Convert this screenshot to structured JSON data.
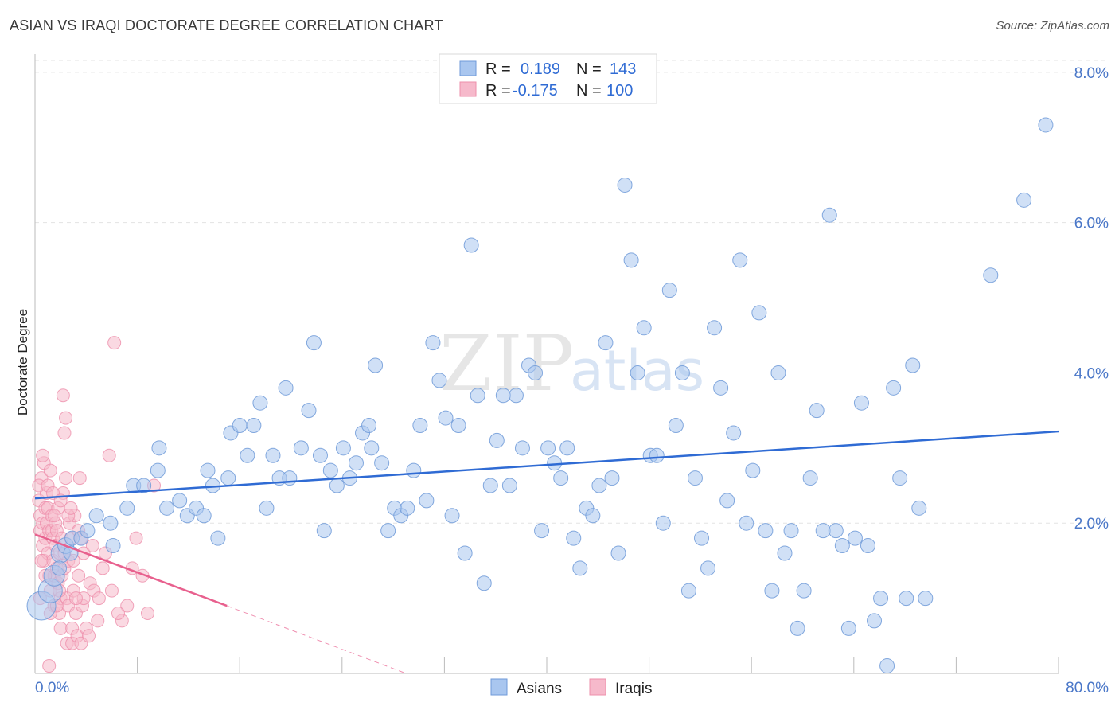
{
  "header": {
    "title": "ASIAN VS IRAQI DOCTORATE DEGREE CORRELATION CHART",
    "source": "Source: ZipAtlas.com"
  },
  "watermark": {
    "zip": "ZIP",
    "atlas": "atlas"
  },
  "legend": {
    "rows": [
      {
        "r_label": "R =",
        "r_value": "0.189",
        "n_label": "N =",
        "n_value": "143",
        "color": "#a9c6ef"
      },
      {
        "r_label": "R =",
        "r_value": "-0.175",
        "n_label": "N =",
        "n_value": "100",
        "color": "#f6b9cb"
      }
    ]
  },
  "bottom_legend": {
    "asians": "Asians",
    "iraqis": "Iraqis"
  },
  "colors": {
    "asian_fill": "#a9c6ef",
    "asian_stroke": "#6f9ad8",
    "asian_line": "#2f6bd4",
    "iraqi_fill": "#f6b9cb",
    "iraqi_stroke": "#ee8fab",
    "iraqi_line": "#e8608e",
    "axis_text": "#4a77c8",
    "grid": "#e3e3e3"
  },
  "chart_data": {
    "type": "scatter",
    "title": "ASIAN VS IRAQI DOCTORATE DEGREE CORRELATION CHART",
    "xlabel": "",
    "ylabel": "Doctorate Degree",
    "xlim": [
      0,
      80
    ],
    "ylim": [
      0,
      8.2
    ],
    "x_tick_labels": [
      "0.0%",
      "80.0%"
    ],
    "y_ticks": [
      2,
      4,
      6,
      8
    ],
    "y_tick_labels": [
      "2.0%",
      "4.0%",
      "6.0%",
      "8.0%"
    ],
    "grid": true,
    "legend_position": "top-center",
    "series": [
      {
        "name": "Asians",
        "r": 0.189,
        "n": 143,
        "trend": {
          "x": [
            0,
            80
          ],
          "y": [
            2.33,
            3.22
          ]
        },
        "points": [
          [
            0.5,
            0.9,
            18
          ],
          [
            1.2,
            1.1,
            15
          ],
          [
            1.5,
            1.3,
            13
          ],
          [
            2.0,
            1.6,
            12
          ],
          [
            2.4,
            1.7,
            10
          ],
          [
            2.9,
            1.8,
            9
          ],
          [
            3.6,
            1.8,
            9
          ],
          [
            4.1,
            1.9,
            9
          ],
          [
            5.9,
            2.0,
            9
          ],
          [
            7.2,
            2.2,
            9
          ],
          [
            7.7,
            2.5,
            9
          ],
          [
            9.7,
            3.0,
            9
          ],
          [
            10.3,
            2.2,
            9
          ],
          [
            8.5,
            2.5,
            9
          ],
          [
            9.6,
            2.7,
            9
          ],
          [
            4.8,
            2.1,
            9
          ],
          [
            6.1,
            1.7,
            9
          ],
          [
            2.8,
            1.6,
            9
          ],
          [
            1.9,
            1.4,
            9
          ],
          [
            11.3,
            2.3,
            9
          ],
          [
            11.9,
            2.1,
            9
          ],
          [
            12.6,
            2.2,
            9
          ],
          [
            13.2,
            2.1,
            9
          ],
          [
            13.5,
            2.7,
            9
          ],
          [
            13.9,
            2.5,
            9
          ],
          [
            14.3,
            1.8,
            9
          ],
          [
            15.1,
            2.6,
            9
          ],
          [
            15.3,
            3.2,
            9
          ],
          [
            16.0,
            3.3,
            9
          ],
          [
            16.6,
            2.9,
            9
          ],
          [
            17.1,
            3.3,
            9
          ],
          [
            17.6,
            3.6,
            9
          ],
          [
            18.1,
            2.2,
            9
          ],
          [
            18.6,
            2.9,
            9
          ],
          [
            19.1,
            2.6,
            9
          ],
          [
            19.6,
            3.8,
            9
          ],
          [
            19.9,
            2.6,
            9
          ],
          [
            20.8,
            3.0,
            9
          ],
          [
            21.4,
            3.5,
            9
          ],
          [
            21.8,
            4.4,
            9
          ],
          [
            22.3,
            2.9,
            9
          ],
          [
            22.6,
            1.9,
            9
          ],
          [
            23.1,
            2.7,
            9
          ],
          [
            23.6,
            2.5,
            9
          ],
          [
            24.1,
            3.0,
            9
          ],
          [
            24.6,
            2.6,
            9
          ],
          [
            25.1,
            2.8,
            9
          ],
          [
            25.6,
            3.2,
            9
          ],
          [
            26.1,
            3.3,
            9
          ],
          [
            26.3,
            3.0,
            9
          ],
          [
            26.6,
            4.1,
            9
          ],
          [
            27.1,
            2.8,
            9
          ],
          [
            27.6,
            1.9,
            9
          ],
          [
            28.1,
            2.2,
            9
          ],
          [
            28.6,
            2.1,
            9
          ],
          [
            29.1,
            2.2,
            9
          ],
          [
            29.6,
            2.7,
            9
          ],
          [
            30.1,
            3.3,
            9
          ],
          [
            30.6,
            2.3,
            9
          ],
          [
            31.1,
            4.4,
            9
          ],
          [
            31.6,
            3.9,
            9
          ],
          [
            32.1,
            3.4,
            9
          ],
          [
            32.6,
            2.1,
            9
          ],
          [
            33.1,
            3.3,
            9
          ],
          [
            33.6,
            1.6,
            9
          ],
          [
            34.1,
            5.7,
            9
          ],
          [
            34.6,
            3.7,
            9
          ],
          [
            35.1,
            1.2,
            9
          ],
          [
            35.6,
            2.5,
            9
          ],
          [
            36.1,
            3.1,
            9
          ],
          [
            36.6,
            3.7,
            9
          ],
          [
            37.1,
            2.5,
            9
          ],
          [
            37.6,
            3.7,
            9
          ],
          [
            38.1,
            3.0,
            9
          ],
          [
            38.6,
            4.1,
            9
          ],
          [
            39.1,
            4.0,
            9
          ],
          [
            39.6,
            1.9,
            9
          ],
          [
            40.1,
            3.0,
            9
          ],
          [
            40.6,
            2.8,
            9
          ],
          [
            41.1,
            2.6,
            9
          ],
          [
            41.6,
            3.0,
            9
          ],
          [
            42.1,
            1.8,
            9
          ],
          [
            42.6,
            1.4,
            9
          ],
          [
            43.1,
            2.2,
            9
          ],
          [
            43.6,
            2.1,
            9
          ],
          [
            44.1,
            2.5,
            9
          ],
          [
            44.6,
            4.4,
            9
          ],
          [
            45.1,
            2.6,
            9
          ],
          [
            45.6,
            1.6,
            9
          ],
          [
            46.1,
            6.5,
            9
          ],
          [
            46.6,
            5.5,
            9
          ],
          [
            47.1,
            4.0,
            9
          ],
          [
            47.6,
            4.6,
            9
          ],
          [
            48.1,
            2.9,
            9
          ],
          [
            48.6,
            2.9,
            9
          ],
          [
            49.1,
            2.0,
            9
          ],
          [
            49.6,
            5.1,
            9
          ],
          [
            50.1,
            3.3,
            9
          ],
          [
            50.6,
            4.0,
            9
          ],
          [
            51.1,
            1.1,
            9
          ],
          [
            51.6,
            2.6,
            9
          ],
          [
            52.1,
            1.8,
            9
          ],
          [
            52.6,
            1.4,
            9
          ],
          [
            53.1,
            4.6,
            9
          ],
          [
            53.6,
            3.8,
            9
          ],
          [
            54.1,
            2.3,
            9
          ],
          [
            54.6,
            3.2,
            9
          ],
          [
            55.1,
            5.5,
            9
          ],
          [
            55.6,
            2.0,
            9
          ],
          [
            56.1,
            2.7,
            9
          ],
          [
            56.6,
            4.8,
            9
          ],
          [
            57.1,
            1.9,
            9
          ],
          [
            57.6,
            1.1,
            9
          ],
          [
            58.1,
            4.0,
            9
          ],
          [
            58.6,
            1.6,
            9
          ],
          [
            59.1,
            1.9,
            9
          ],
          [
            59.6,
            0.6,
            9
          ],
          [
            60.1,
            1.1,
            9
          ],
          [
            60.6,
            2.6,
            9
          ],
          [
            61.1,
            3.5,
            9
          ],
          [
            61.6,
            1.9,
            9
          ],
          [
            62.1,
            6.1,
            9
          ],
          [
            62.6,
            1.9,
            9
          ],
          [
            63.1,
            1.7,
            9
          ],
          [
            63.6,
            0.6,
            9
          ],
          [
            64.1,
            1.8,
            9
          ],
          [
            64.6,
            3.6,
            9
          ],
          [
            65.1,
            1.7,
            9
          ],
          [
            65.6,
            0.7,
            9
          ],
          [
            66.1,
            1.0,
            9
          ],
          [
            66.6,
            0.1,
            9
          ],
          [
            67.1,
            3.8,
            9
          ],
          [
            67.6,
            2.6,
            9
          ],
          [
            68.1,
            1.0,
            9
          ],
          [
            68.6,
            4.1,
            9
          ],
          [
            69.1,
            2.2,
            9
          ],
          [
            69.6,
            1.0,
            9
          ],
          [
            74.7,
            5.3,
            9
          ],
          [
            77.3,
            6.3,
            9
          ],
          [
            79.0,
            7.3,
            9
          ]
        ]
      },
      {
        "name": "Iraqis",
        "r": -0.175,
        "n": 100,
        "trend": {
          "x": [
            0,
            15
          ],
          "y": [
            1.85,
            0.9
          ]
        },
        "trend_dashed": {
          "x": [
            15,
            29
          ],
          "y": [
            0.9,
            0.0
          ]
        },
        "points": [
          [
            0.3,
            2.3
          ],
          [
            0.4,
            2.1
          ],
          [
            0.4,
            1.9
          ],
          [
            0.5,
            2.6
          ],
          [
            0.6,
            1.7
          ],
          [
            0.6,
            2.0
          ],
          [
            0.7,
            2.8
          ],
          [
            0.7,
            1.5
          ],
          [
            0.8,
            2.2
          ],
          [
            0.8,
            1.8
          ],
          [
            0.9,
            2.4
          ],
          [
            0.9,
            2.0
          ],
          [
            1.0,
            1.6
          ],
          [
            1.0,
            2.2
          ],
          [
            1.1,
            1.9
          ],
          [
            1.1,
            1.3
          ],
          [
            1.2,
            2.7
          ],
          [
            1.2,
            1.1
          ],
          [
            1.3,
            1.9
          ],
          [
            1.3,
            2.1
          ],
          [
            1.4,
            1.5
          ],
          [
            1.4,
            1.8
          ],
          [
            1.5,
            0.9
          ],
          [
            1.5,
            1.3
          ],
          [
            1.6,
            2.0
          ],
          [
            1.6,
            1.7
          ],
          [
            1.7,
            1.4
          ],
          [
            1.7,
            1.9
          ],
          [
            1.8,
            2.2
          ],
          [
            1.8,
            1.2
          ],
          [
            1.9,
            0.8
          ],
          [
            1.9,
            1.6
          ],
          [
            2.0,
            0.6
          ],
          [
            2.0,
            1.0
          ],
          [
            2.1,
            1.3
          ],
          [
            2.1,
            1.8
          ],
          [
            2.2,
            3.7
          ],
          [
            2.2,
            2.4
          ],
          [
            2.3,
            3.2
          ],
          [
            2.3,
            1.4
          ],
          [
            2.4,
            3.4
          ],
          [
            2.4,
            2.6
          ],
          [
            2.5,
            1.0
          ],
          [
            2.5,
            0.4
          ],
          [
            2.6,
            0.9
          ],
          [
            2.6,
            1.5
          ],
          [
            2.7,
            2.0
          ],
          [
            2.8,
            1.8
          ],
          [
            2.9,
            0.6
          ],
          [
            2.9,
            0.4
          ],
          [
            3.0,
            1.1
          ],
          [
            3.1,
            2.1
          ],
          [
            3.2,
            0.8
          ],
          [
            3.3,
            0.5
          ],
          [
            3.4,
            1.9
          ],
          [
            3.5,
            2.6
          ],
          [
            3.6,
            0.4
          ],
          [
            3.7,
            0.9
          ],
          [
            3.8,
            1.6
          ],
          [
            4.0,
            0.6
          ],
          [
            4.3,
            1.2
          ],
          [
            4.6,
            1.1
          ],
          [
            4.9,
            0.7
          ],
          [
            5.3,
            1.4
          ],
          [
            5.8,
            2.9
          ],
          [
            6.2,
            4.4
          ],
          [
            6.8,
            0.7
          ],
          [
            7.2,
            0.9
          ],
          [
            7.6,
            1.4
          ],
          [
            7.9,
            1.8
          ],
          [
            8.4,
            1.3
          ],
          [
            8.8,
            0.8
          ],
          [
            9.3,
            2.5
          ],
          [
            0.3,
            2.5
          ],
          [
            0.5,
            1.5
          ],
          [
            0.8,
            1.3
          ],
          [
            1.0,
            2.5
          ],
          [
            1.2,
            0.8
          ],
          [
            1.4,
            2.4
          ],
          [
            1.7,
            0.9
          ],
          [
            2.0,
            2.3
          ],
          [
            2.3,
            1.6
          ],
          [
            2.6,
            2.1
          ],
          [
            3.0,
            1.5
          ],
          [
            3.4,
            1.3
          ],
          [
            3.8,
            1.0
          ],
          [
            4.2,
            0.5
          ],
          [
            0.4,
            1.0
          ],
          [
            0.6,
            2.9
          ],
          [
            1.1,
            0.1
          ],
          [
            1.5,
            2.1
          ],
          [
            1.9,
            1.1
          ],
          [
            2.8,
            2.2
          ],
          [
            3.2,
            1.0
          ],
          [
            3.6,
            1.8
          ],
          [
            4.5,
            1.7
          ],
          [
            5.0,
            1.0
          ],
          [
            5.5,
            1.6
          ],
          [
            6.0,
            1.1
          ],
          [
            6.5,
            0.8
          ]
        ]
      }
    ]
  }
}
